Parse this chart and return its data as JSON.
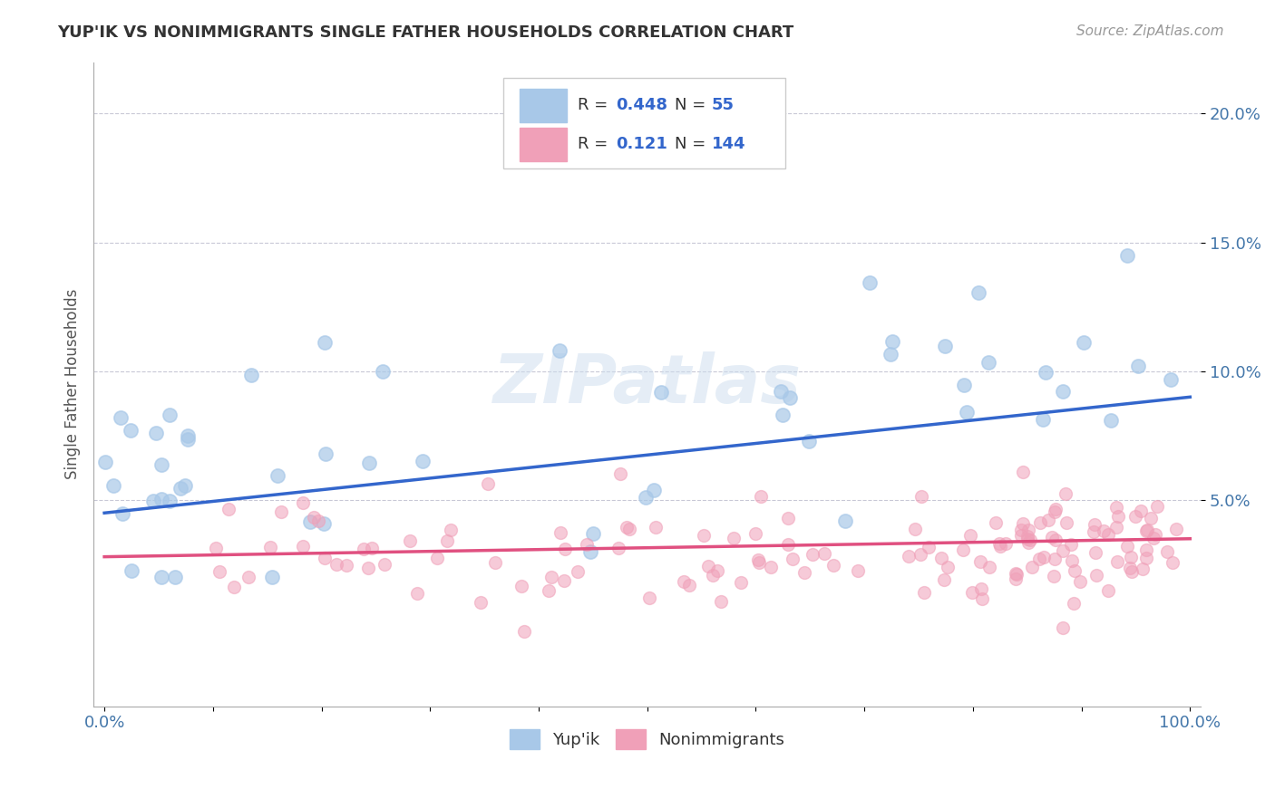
{
  "title": "YUP'IK VS NONIMMIGRANTS SINGLE FATHER HOUSEHOLDS CORRELATION CHART",
  "source": "Source: ZipAtlas.com",
  "ylabel_label": "Single Father Households",
  "yupik_R": 0.448,
  "yupik_N": 55,
  "nonimm_R": 0.121,
  "nonimm_N": 144,
  "blue_color": "#a8c8e8",
  "blue_fill_color": "#a8c8e8",
  "blue_line_color": "#3366cc",
  "pink_color": "#f0a0b8",
  "pink_line_color": "#e05080",
  "blue_text_color": "#3366cc",
  "background_color": "#ffffff",
  "watermark": "ZIPatlas",
  "xlim": [
    0.0,
    100.0
  ],
  "ylim": [
    -3.0,
    22.0
  ],
  "ytick_vals": [
    5,
    10,
    15,
    20
  ],
  "xtick_positions": [
    0,
    10,
    20,
    30,
    40,
    50,
    60,
    70,
    80,
    90,
    100
  ],
  "blue_line_start_y": 4.5,
  "blue_line_end_y": 9.0,
  "pink_line_start_y": 2.8,
  "pink_line_end_y": 3.5
}
